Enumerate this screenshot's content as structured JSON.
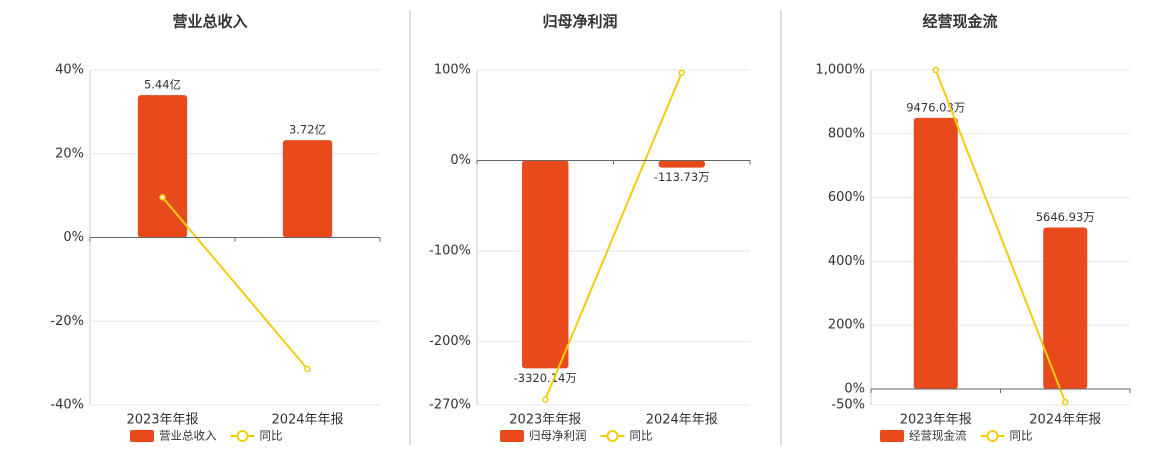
{
  "chart_data": [
    {
      "type": "bar",
      "title": "营业总收入",
      "categories": [
        "2023年年报",
        "2024年年报"
      ],
      "series": [
        {
          "name": "营业总收入",
          "color": "#e84a1c",
          "values": [
            5.44,
            3.72
          ],
          "value_labels": [
            "5.44亿",
            "3.72亿"
          ],
          "axis": "y2"
        },
        {
          "name": "同比",
          "type": "line",
          "color": "#f2cc0f",
          "values": [
            9.6,
            -31.4
          ]
        }
      ],
      "ylim": [
        -40,
        40
      ],
      "yticks": [
        {
          "value": -40,
          "label": "-40%"
        },
        {
          "value": -20,
          "label": "-20%"
        },
        {
          "value": 0,
          "label": "0%"
        },
        {
          "value": 20,
          "label": "20%"
        },
        {
          "value": 40,
          "label": "40%"
        }
      ],
      "grid": true
    },
    {
      "type": "bar",
      "title": "归母净利润",
      "categories": [
        "2023年年报",
        "2024年年报"
      ],
      "series": [
        {
          "name": "归母净利润",
          "color": "#e84a1c",
          "values": [
            -3320.14,
            -113.73
          ],
          "value_labels": [
            "-3320.14万",
            "-113.73万"
          ],
          "axis": "y2"
        },
        {
          "name": "同比",
          "type": "line",
          "color": "#f2cc0f",
          "values": [
            -264,
            97
          ]
        }
      ],
      "ylim": [
        -270,
        100
      ],
      "yticks": [
        {
          "value": -270,
          "label": "-270%"
        },
        {
          "value": -200,
          "label": "-200%"
        },
        {
          "value": -100,
          "label": "-100%"
        },
        {
          "value": 0,
          "label": "0%"
        },
        {
          "value": 100,
          "label": "100%"
        }
      ],
      "grid": true
    },
    {
      "type": "bar",
      "title": "经营现金流",
      "categories": [
        "2023年年报",
        "2024年年报"
      ],
      "series": [
        {
          "name": "经营现金流",
          "color": "#e84a1c",
          "values": [
            9476.03,
            5646.93
          ],
          "value_labels": [
            "9476.03万",
            "5646.93万"
          ],
          "axis": "y2"
        },
        {
          "name": "同比",
          "type": "line",
          "color": "#f2cc0f",
          "values": [
            1000,
            -41
          ]
        }
      ],
      "ylim": [
        -50,
        1000
      ],
      "yticks": [
        {
          "value": -50,
          "label": "-50%"
        },
        {
          "value": 0,
          "label": "0%"
        },
        {
          "value": 200,
          "label": "200%"
        },
        {
          "value": 400,
          "label": "400%"
        },
        {
          "value": 600,
          "label": "600%"
        },
        {
          "value": 800,
          "label": "800%"
        },
        {
          "value": 1000,
          "label": "1,000%"
        }
      ],
      "grid": true
    }
  ]
}
